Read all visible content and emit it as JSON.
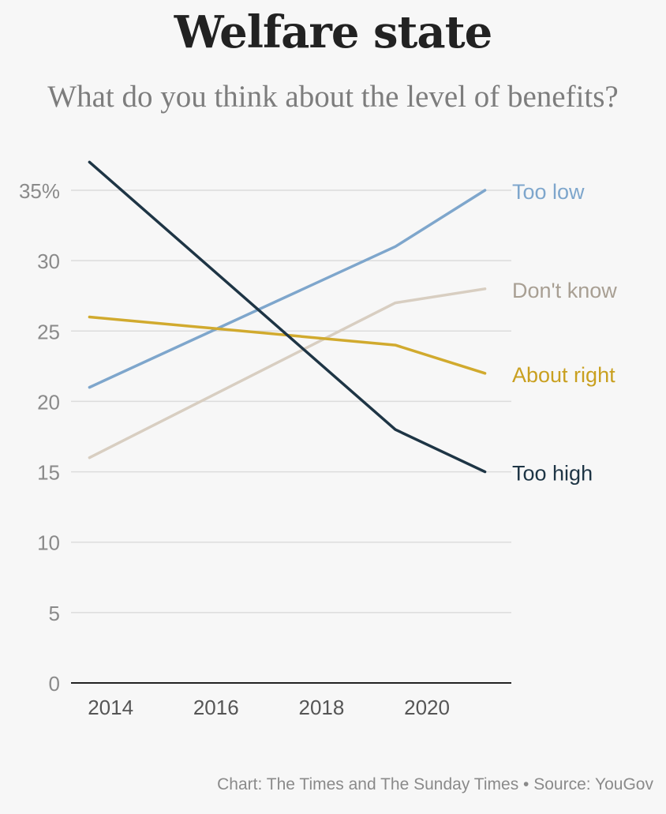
{
  "title": "Welfare state",
  "subtitle": "What do you think about the level of benefits?",
  "source": "Chart: The Times and The Sunday Times • Source: YouGov",
  "chart_data": {
    "type": "line",
    "x_ticks": [
      2014,
      2016,
      2018,
      2020
    ],
    "y_ticks": [
      {
        "value": 0,
        "label": "0"
      },
      {
        "value": 5,
        "label": "5"
      },
      {
        "value": 10,
        "label": "10"
      },
      {
        "value": 15,
        "label": "15"
      },
      {
        "value": 20,
        "label": "20"
      },
      {
        "value": 25,
        "label": "25"
      },
      {
        "value": 30,
        "label": "30"
      },
      {
        "value": 35,
        "label": "35%"
      }
    ],
    "xlim": [
      2013.25,
      2021.6
    ],
    "ylim": [
      0,
      37
    ],
    "grid": true,
    "series": [
      {
        "name": "Too low",
        "color": "#7ea6cc",
        "x": [
          2013.6,
          2019.4,
          2021.1
        ],
        "values": [
          21,
          31,
          35
        ]
      },
      {
        "name": "Don't know",
        "color": "#d8cec1",
        "x": [
          2013.6,
          2019.4,
          2021.1
        ],
        "values": [
          16,
          27,
          28
        ]
      },
      {
        "name": "About right",
        "color": "#d1aa2e",
        "x": [
          2013.6,
          2019.4,
          2021.1
        ],
        "values": [
          26,
          24,
          22
        ]
      },
      {
        "name": "Too high",
        "color": "#1e3545",
        "x": [
          2013.6,
          2019.4,
          2021.1
        ],
        "values": [
          37,
          18,
          15
        ]
      }
    ],
    "label_colors": {
      "Too low": "#7ea6cc",
      "Don't know": "#a89f93",
      "About right": "#c9a020",
      "Too high": "#1e3545"
    }
  }
}
